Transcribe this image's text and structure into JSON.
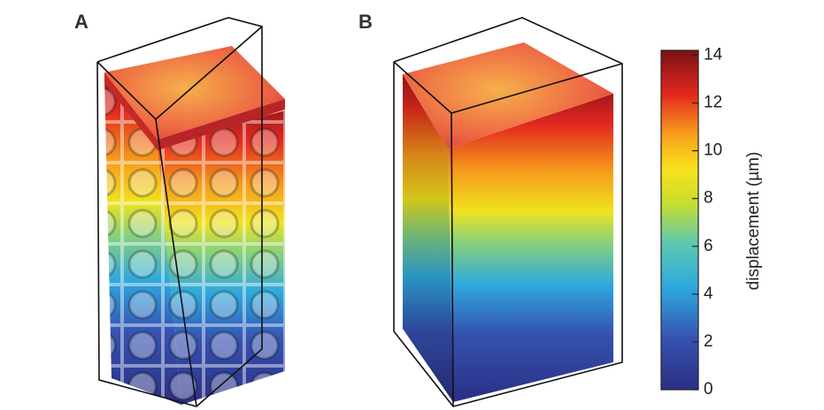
{
  "panels": [
    {
      "label": "A"
    },
    {
      "label": "B"
    }
  ],
  "colorbar": {
    "label": "displacement (µm)",
    "lim": [
      0,
      14.2
    ],
    "ticks": [
      0,
      2,
      4,
      6,
      8,
      10,
      12,
      14
    ]
  }
}
